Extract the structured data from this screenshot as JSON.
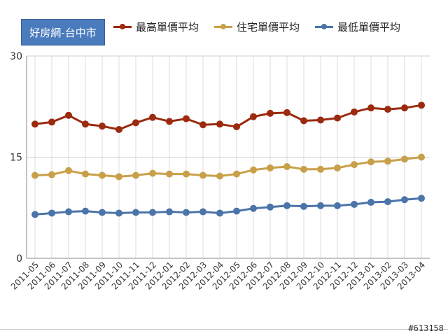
{
  "badge": "好房網-台中市",
  "watermark": "#613158",
  "colors": {
    "high": "#9b2a0f",
    "residential": "#c9a04a",
    "low": "#4b74a8"
  },
  "chart_data": {
    "type": "line",
    "categories": [
      "2011-05",
      "2011-06",
      "2011-07",
      "2011-08",
      "2011-09",
      "2011-10",
      "2011-11",
      "2011-12",
      "2012-01",
      "2012-02",
      "2012-03",
      "2012-04",
      "2012-05",
      "2012-06",
      "2012-07",
      "2012-08",
      "2012-09",
      "2012-10",
      "2012-11",
      "2012-12",
      "2013-01",
      "2013-02",
      "2013-03",
      "2013-04"
    ],
    "series": [
      {
        "name": "最高單價平均",
        "color": "#9b2a0f",
        "values": [
          19.9,
          20.2,
          21.2,
          19.9,
          19.6,
          19.1,
          20.1,
          20.9,
          20.3,
          20.7,
          19.8,
          19.9,
          19.5,
          21.0,
          21.5,
          21.6,
          20.4,
          20.5,
          20.8,
          21.7,
          22.3,
          22.1,
          22.3,
          22.7
        ]
      },
      {
        "name": "住宅單價平均",
        "color": "#c9a04a",
        "values": [
          12.3,
          12.4,
          13.0,
          12.5,
          12.3,
          12.1,
          12.3,
          12.6,
          12.5,
          12.5,
          12.3,
          12.2,
          12.5,
          13.1,
          13.4,
          13.6,
          13.2,
          13.2,
          13.4,
          13.9,
          14.3,
          14.4,
          14.7,
          15.0
        ]
      },
      {
        "name": "最低單價平均",
        "color": "#4b74a8",
        "values": [
          6.5,
          6.7,
          6.9,
          7.0,
          6.8,
          6.7,
          6.8,
          6.8,
          6.9,
          6.8,
          6.9,
          6.7,
          7.0,
          7.4,
          7.6,
          7.8,
          7.7,
          7.8,
          7.8,
          8.0,
          8.3,
          8.4,
          8.7,
          8.9
        ]
      }
    ],
    "yticks": [
      "0",
      "15",
      "30"
    ],
    "ytick_values": [
      0,
      15,
      30
    ],
    "ylim": [
      0,
      30
    ],
    "grid": true,
    "legend_position": "top"
  }
}
